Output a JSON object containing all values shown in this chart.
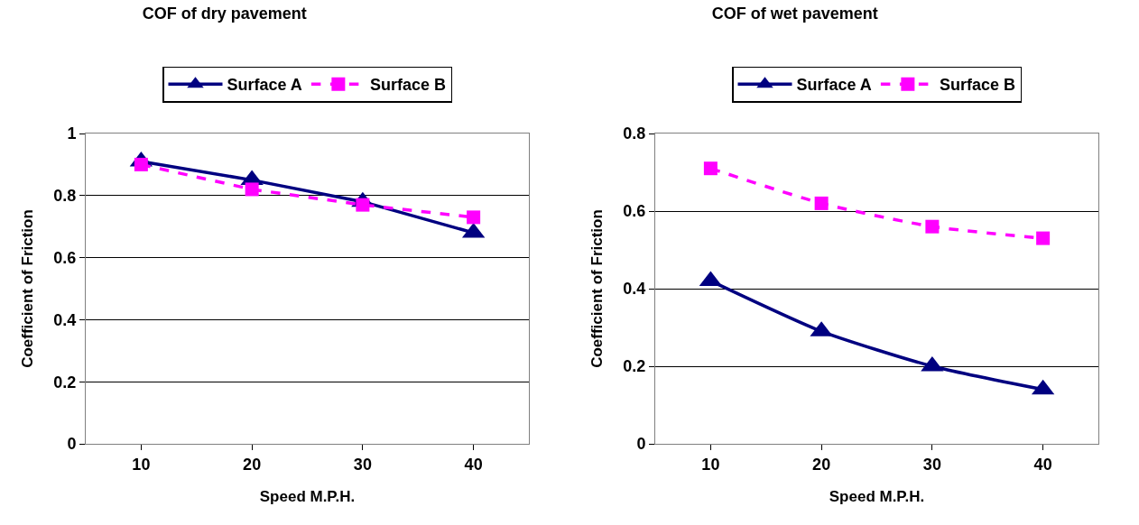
{
  "chart_data": [
    {
      "type": "line",
      "title": "COF of dry pavement",
      "xlabel": "Speed M.P.H.",
      "ylabel": "Coefficient of Friction",
      "categories": [
        "10",
        "20",
        "30",
        "40"
      ],
      "series": [
        {
          "name": "Surface A",
          "color": "#000080",
          "values": [
            0.91,
            0.85,
            0.78,
            0.68
          ],
          "marker": "triangle",
          "line_style": "solid"
        },
        {
          "name": "Surface B",
          "color": "#ff00ff",
          "values": [
            0.9,
            0.82,
            0.77,
            0.73
          ],
          "marker": "square",
          "line_style": "dashed"
        }
      ],
      "ylim": [
        0,
        1
      ],
      "yticks": [
        0,
        0.2,
        0.4,
        0.6,
        0.8,
        1
      ],
      "grid": "y",
      "legend": "top"
    },
    {
      "type": "line",
      "title": "COF of wet pavement",
      "xlabel": "Speed M.P.H.",
      "ylabel": "Coefficient of Friction",
      "categories": [
        "10",
        "20",
        "30",
        "40"
      ],
      "series": [
        {
          "name": "Surface A",
          "color": "#000080",
          "values": [
            0.42,
            0.29,
            0.2,
            0.14
          ],
          "marker": "triangle",
          "line_style": "solid"
        },
        {
          "name": "Surface B",
          "color": "#ff00ff",
          "values": [
            0.71,
            0.62,
            0.56,
            0.53
          ],
          "marker": "square",
          "line_style": "dashed"
        }
      ],
      "ylim": [
        0,
        0.8
      ],
      "yticks": [
        0,
        0.2,
        0.4,
        0.6,
        0.8
      ],
      "grid": "y",
      "legend": "top"
    }
  ]
}
